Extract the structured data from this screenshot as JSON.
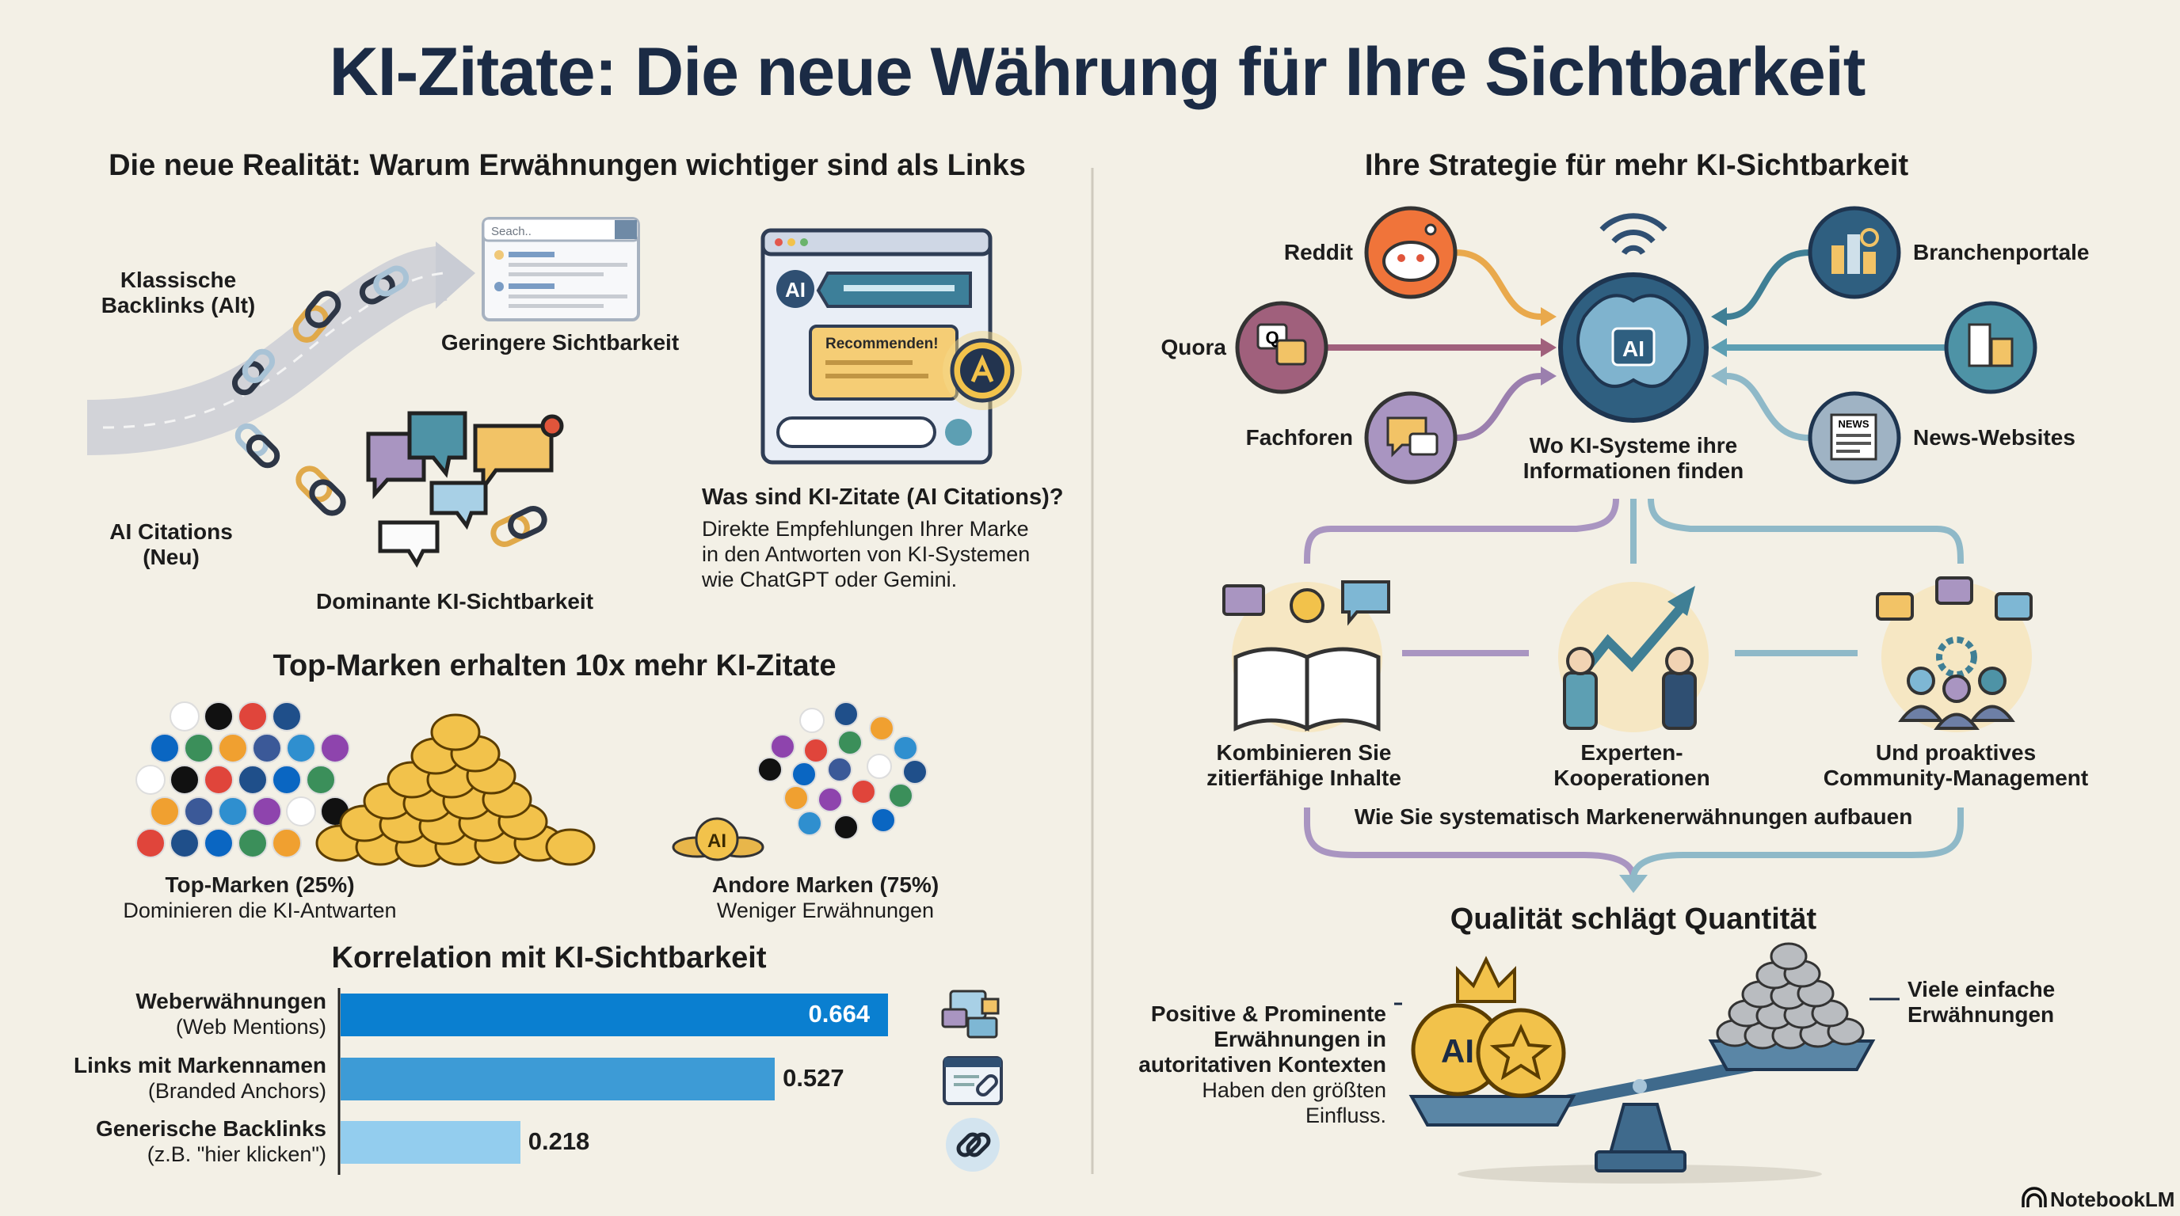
{
  "title": "KI-Zitate: Die neue Währung für Ihre Sichtbarkeit",
  "left": {
    "heading": "Die neue Realität: Warum Erwähnungen wichtiger sind als Links",
    "classic_label": [
      "Klassische",
      "Backlinks (Alt)"
    ],
    "search_placeholder": "Seach..",
    "lower_visibility": "Geringere Sichtbarkeit",
    "ai_citations_label": [
      "AI Citations",
      "(Neu)"
    ],
    "dominant_visibility": "Dominante KI-Sichtbarkeit",
    "chat_recommend": "Recommenden!",
    "chat_ai_badge": "AI",
    "what_title": "Was sind KI-Zitate (AI Citations)?",
    "what_body": [
      "Direkte Empfehlungen Ihrer Marke",
      "in den Antworten von KI-Systemen",
      "wie ChatGPT oder Gemini."
    ],
    "top_heading": "Top-Marken erhalten 10x mehr KI-Zitate",
    "top_brands": {
      "title": "Top-Marken (25%)",
      "sub": "Dominieren die KI-Antwarten"
    },
    "other_brands": {
      "title": "Andore Marken (75%)",
      "sub": "Weniger Erwähnungen"
    },
    "coin_label": "AI"
  },
  "chart_data": {
    "type": "bar",
    "orientation": "horizontal",
    "title": "Korrelation mit KI-Sichtbarkeit",
    "categories": [
      {
        "label": "Weberwähnungen",
        "sub": "(Web Mentions)"
      },
      {
        "label": "Links mit Markennamen",
        "sub": "(Branded Anchors)"
      },
      {
        "label": "Generische Backlinks",
        "sub": "(z.B. \"hier klicken\")"
      }
    ],
    "values": [
      0.664,
      0.527,
      0.218
    ],
    "value_labels": [
      "0.664",
      "0.527",
      "0.218"
    ],
    "colors": [
      "#0a7fd0",
      "#3d9bd6",
      "#93cdee"
    ],
    "icons": [
      "chat-bubbles-icon",
      "web-link-icon",
      "chain-link-icon"
    ]
  },
  "right": {
    "heading": "Ihre Strategie für mehr KI-Sichtbarkeit",
    "sources": {
      "reddit": "Reddit",
      "quora": "Quora",
      "fachforen": "Fachforen",
      "branchenportale": "Branchenportale",
      "news": "News-Websites"
    },
    "brain_badge": "AI",
    "news_badge": "NEWS",
    "center_label": [
      "Wo KI-Systeme ihre",
      "Informationen finden"
    ],
    "steps": [
      [
        "Kombinieren Sie",
        "zitierfähige Inhalte"
      ],
      [
        "Experten-",
        "Kooperationen"
      ],
      [
        "Und proaktives",
        "Community-Management"
      ]
    ],
    "steps_caption": "Wie Sie systematisch Markenerwähnungen aufbauen",
    "quality_heading": "Qualität schlägt Quantität",
    "quality_left": {
      "bold": [
        "Positive & Prominente",
        "Erwähnungen in",
        "autoritativen Kontexten"
      ],
      "normal": [
        "Haben den größten",
        "Einfluss."
      ]
    },
    "quality_right": [
      "Viele einfache",
      "Erwähnungen"
    ],
    "coin_label": "AI"
  },
  "footer": {
    "brand": "NotebookLM"
  },
  "colors": {
    "navy": "#1b2b45",
    "gold": "#f2c24b",
    "teal": "#5d9fb3",
    "purple": "#9b7fae",
    "orange": "#e9a94c",
    "background": "#f3f0e6"
  }
}
